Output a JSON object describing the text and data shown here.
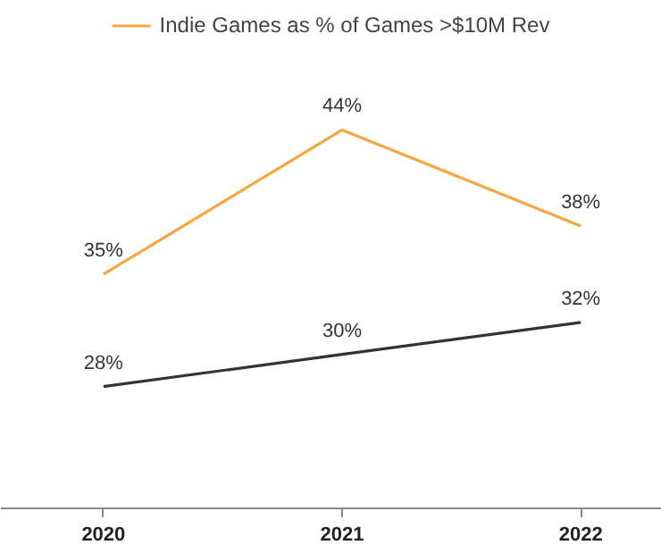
{
  "chart_data": {
    "type": "line",
    "x": [
      2020,
      2021,
      2022
    ],
    "series": [
      {
        "name": "Indie Games as % of Games >$10M Rev",
        "color": "#f5a742",
        "values": [
          35,
          44,
          38
        ],
        "value_labels": [
          "35%",
          "44%",
          "38%"
        ]
      },
      {
        "color": "#333333",
        "values": [
          28,
          30,
          32
        ],
        "value_labels": [
          "28%",
          "30%",
          "32%"
        ]
      }
    ],
    "xlim": [
      2019.57,
      2022.34
    ],
    "xticks": [
      2020,
      2021,
      2022
    ],
    "grid": false,
    "legend": "top",
    "marker": "none",
    "line_style": "solid",
    "tick_labels": "x"
  }
}
